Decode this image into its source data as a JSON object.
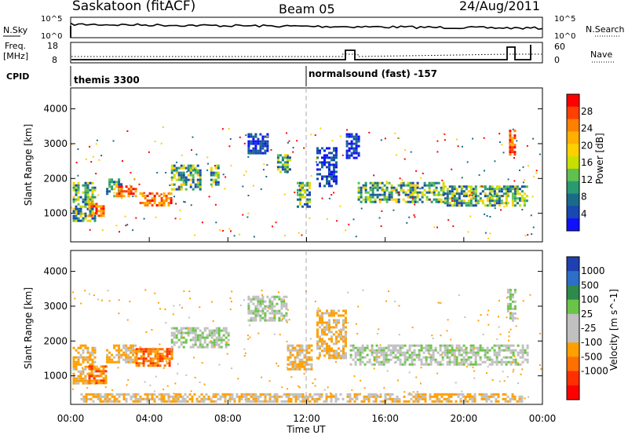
{
  "header": {
    "station": "Saskatoon (fitACF)",
    "beam": "Beam 05",
    "date": "24/Aug/2011"
  },
  "top_panel": {
    "left_label": "N.Sky",
    "right_label": "N.Search",
    "left_ticks": [
      "10^5",
      "10^0"
    ],
    "right_ticks": [
      "10^5",
      "10^0"
    ]
  },
  "freq_panel": {
    "left_label_1": "Freq.",
    "left_label_2": "[MHz]",
    "right_label": "Nave",
    "left_ticks": [
      "18",
      "8"
    ],
    "right_ticks": [
      "60",
      "0"
    ]
  },
  "cpid": {
    "label": "CPID",
    "segments": [
      {
        "text": "themis 3300",
        "start_hour": 0
      },
      {
        "text": "normalsound (fast) -157",
        "start_hour": 12
      }
    ]
  },
  "power_colorbar": {
    "title": "Power [dB]",
    "ticks": [
      "28",
      "24",
      "20",
      "16",
      "12",
      "8",
      "4"
    ],
    "colors": [
      "#ff0000",
      "#ff4000",
      "#ff8000",
      "#ffb000",
      "#ffd000",
      "#c8e000",
      "#60c050",
      "#2a9a70",
      "#1a6a8a",
      "#1848b0",
      "#1010ff"
    ]
  },
  "velocity_colorbar": {
    "title": "Velocity [m s^-1]",
    "ticks": [
      "1000",
      "500",
      "100",
      "25",
      "-25",
      "-100",
      "-500",
      "-1000"
    ],
    "colors": [
      "#1e40b0",
      "#2e6ec8",
      "#2e8a4a",
      "#6ac44a",
      "#c0c0c0",
      "#c0c0c0",
      "#ffa000",
      "#ff7000",
      "#ff3000",
      "#ff0000"
    ]
  },
  "chart_data": [
    {
      "type": "heatmap",
      "title": "Power",
      "ylabel": "Slant Range [km]",
      "xlabel": "",
      "xlim_hours": [
        0,
        24
      ],
      "ylim": [
        180,
        4600
      ],
      "yticks": [
        1000,
        2000,
        3000,
        4000
      ],
      "xticks_hours": [
        0,
        4,
        8,
        12,
        16,
        20,
        24
      ],
      "regions": [
        {
          "t0": 0.1,
          "t1": 1.2,
          "r0": 800,
          "r1": 1900,
          "level": "mid"
        },
        {
          "t0": 0.9,
          "t1": 1.7,
          "r0": 900,
          "r1": 1300,
          "level": "high"
        },
        {
          "t0": 1.8,
          "t1": 2.6,
          "r0": 1500,
          "r1": 2000,
          "level": "mid"
        },
        {
          "t0": 2.3,
          "t1": 3.3,
          "r0": 1500,
          "r1": 1800,
          "level": "high"
        },
        {
          "t0": 3.5,
          "t1": 5.1,
          "r0": 1200,
          "r1": 1600,
          "level": "high"
        },
        {
          "t0": 5.1,
          "t1": 6.6,
          "r0": 1700,
          "r1": 2400,
          "level": "mid"
        },
        {
          "t0": 7.1,
          "t1": 7.5,
          "r0": 1800,
          "r1": 2400,
          "level": "mid"
        },
        {
          "t0": 9.0,
          "t1": 10.0,
          "r0": 2700,
          "r1": 3300,
          "level": "low"
        },
        {
          "t0": 10.5,
          "t1": 11.1,
          "r0": 2200,
          "r1": 2700,
          "level": "mid"
        },
        {
          "t0": 11.5,
          "t1": 12.1,
          "r0": 1200,
          "r1": 1900,
          "level": "mid"
        },
        {
          "t0": 12.5,
          "t1": 13.5,
          "r0": 1800,
          "r1": 2900,
          "level": "low"
        },
        {
          "t0": 14.0,
          "t1": 14.6,
          "r0": 2600,
          "r1": 3300,
          "level": "low"
        },
        {
          "t0": 14.6,
          "t1": 19.0,
          "r0": 1300,
          "r1": 1900,
          "level": "mid"
        },
        {
          "t0": 19.0,
          "t1": 22.2,
          "r0": 1250,
          "r1": 1800,
          "level": "mid"
        },
        {
          "t0": 22.2,
          "t1": 23.2,
          "r0": 1200,
          "r1": 1800,
          "level": "mid"
        },
        {
          "t0": 22.3,
          "t1": 22.6,
          "r0": 2700,
          "r1": 3400,
          "level": "high"
        }
      ]
    },
    {
      "type": "heatmap",
      "title": "Velocity",
      "ylabel": "Slant Range [km]",
      "xlabel": "Time UT",
      "xlim_hours": [
        0,
        24
      ],
      "ylim": [
        180,
        4600
      ],
      "yticks": [
        1000,
        2000,
        3000,
        4000
      ],
      "xticks_hours": [
        0,
        4,
        8,
        12,
        16,
        20,
        24
      ],
      "xtick_labels": [
        "00:00",
        "04:00",
        "08:00",
        "12:00",
        "16:00",
        "20:00",
        "00:00"
      ],
      "regions": [
        {
          "t0": 0.1,
          "t1": 1.2,
          "r0": 800,
          "r1": 1900,
          "level": "neg"
        },
        {
          "t0": 0.9,
          "t1": 1.8,
          "r0": 800,
          "r1": 1300,
          "level": "negstrong"
        },
        {
          "t0": 1.8,
          "t1": 3.3,
          "r0": 1400,
          "r1": 1900,
          "level": "neg"
        },
        {
          "t0": 3.3,
          "t1": 5.1,
          "r0": 1300,
          "r1": 1800,
          "level": "negstrong"
        },
        {
          "t0": 5.1,
          "t1": 8.0,
          "r0": 1800,
          "r1": 2400,
          "level": "zero"
        },
        {
          "t0": 9.0,
          "t1": 11.0,
          "r0": 2600,
          "r1": 3300,
          "level": "zero"
        },
        {
          "t0": 11.0,
          "t1": 12.2,
          "r0": 1200,
          "r1": 1900,
          "level": "neg"
        },
        {
          "t0": 12.5,
          "t1": 14.0,
          "r0": 1500,
          "r1": 2900,
          "level": "neg"
        },
        {
          "t0": 14.2,
          "t1": 23.2,
          "r0": 1300,
          "r1": 1900,
          "level": "zero"
        },
        {
          "t0": 22.2,
          "t1": 22.6,
          "r0": 2600,
          "r1": 3500,
          "level": "zero"
        },
        {
          "t0": 0.5,
          "t1": 23.0,
          "r0": 250,
          "r1": 500,
          "level": "negweak"
        }
      ]
    }
  ]
}
